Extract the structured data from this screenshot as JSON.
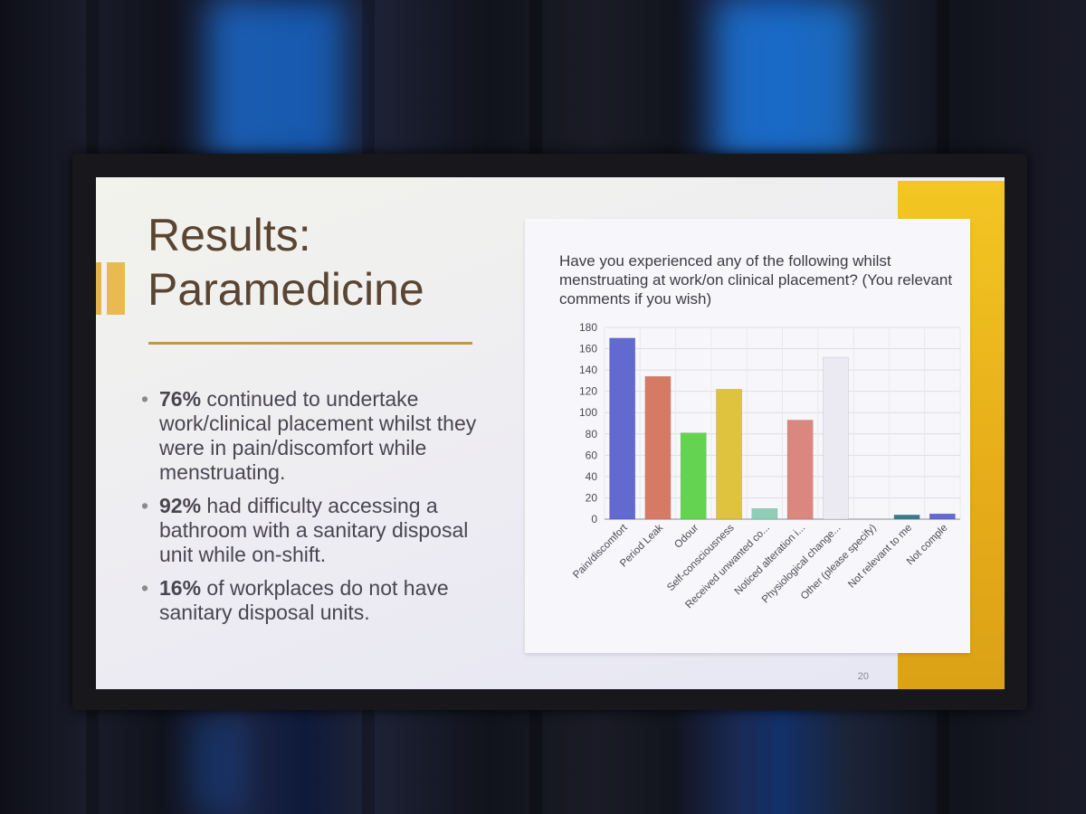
{
  "slide": {
    "title_line1": "Results:",
    "title_line2": "Paramedicine",
    "bullets": [
      {
        "bold": "76%",
        "text": " continued to undertake work/clinical placement whilst they were in pain/discomfort while menstruating."
      },
      {
        "bold": "92%",
        "text": " had difficulty accessing a bathroom with a sanitary disposal unit while on-shift."
      },
      {
        "bold": "16%",
        "text": " of workplaces do not have sanitary disposal units."
      }
    ],
    "page_number": "20"
  },
  "chart_data": {
    "type": "bar",
    "title": "Have you experienced any of the following whilst menstruating at work/on clinical placement? (You relevant comments if you wish)",
    "categories": [
      "Pain/discomfort",
      "Period Leak",
      "Odour",
      "Self-consciousness",
      "Received unwanted co...",
      "Noticed alteration i...",
      "Physiological change...",
      "Other (please specify)",
      "Not relevant to me",
      "Not comple"
    ],
    "values": [
      170,
      134,
      81,
      122,
      10,
      93,
      152,
      0,
      4,
      5
    ],
    "colors": [
      "#6269cf",
      "#d57b63",
      "#66d252",
      "#dfc23e",
      "#8ccfb6",
      "#d9877f",
      "#ebe9f1",
      "#9dd0c8",
      "#3c7c8a",
      "#6269cf"
    ],
    "ylim": [
      0,
      180
    ],
    "yticks": [
      0,
      20,
      40,
      60,
      80,
      100,
      120,
      140,
      160,
      180
    ],
    "grid": true
  }
}
